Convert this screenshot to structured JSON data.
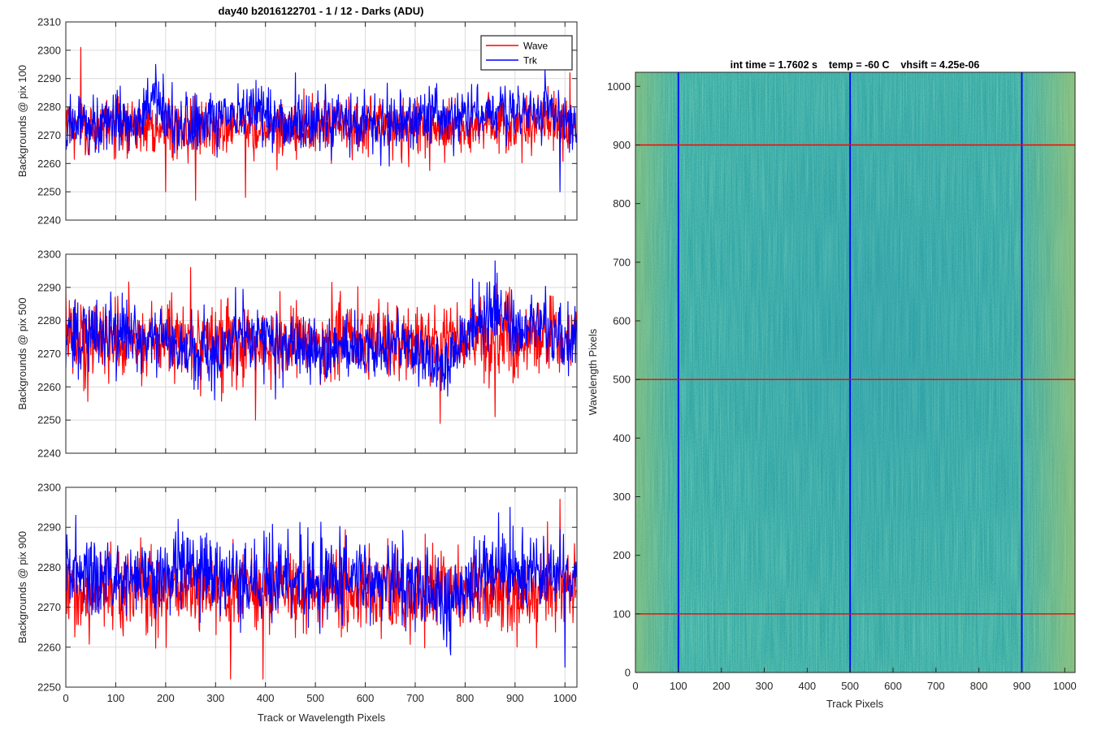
{
  "figure": {
    "title": "day40 b2016122701 - 1 / 12 - Darks (ADU)",
    "shared_xlabel": "Track or Wavelength Pixels"
  },
  "colors": {
    "wave": "#ff0000",
    "trk": "#0000ff",
    "grid": "#dcdcdc",
    "axis": "#262626",
    "image_base": "#2fa89a",
    "image_edge": "#a9c66a",
    "marker_rows": "#ff0000",
    "marker_cols": "#0000ff"
  },
  "chart_data": [
    {
      "type": "line",
      "ylabel": "Backgrounds @ pix 100",
      "xlim": [
        0,
        1024
      ],
      "ylim": [
        2240,
        2310
      ],
      "xticks": [
        0,
        100,
        200,
        300,
        400,
        500,
        600,
        700,
        800,
        900,
        1000
      ],
      "yticks": [
        2240,
        2250,
        2260,
        2270,
        2280,
        2290,
        2300,
        2310
      ],
      "grid": true,
      "legend": {
        "placement": "top-right",
        "entries": [
          "Wave",
          "Trk"
        ]
      },
      "series": [
        {
          "name": "Wave",
          "color": "#ff0000",
          "mean": 2273,
          "spread": 5,
          "features": [
            [
              30,
              2301
            ],
            [
              200,
              2250
            ],
            [
              260,
              2247
            ],
            [
              360,
              2248
            ],
            [
              1010,
              2292
            ]
          ]
        },
        {
          "name": "Trk",
          "color": "#0000ff",
          "mean": 2274,
          "spread": 5,
          "drift": [
            [
              0,
              2273
            ],
            [
              150,
              2276
            ],
            [
              180,
              2282
            ],
            [
              220,
              2273
            ],
            [
              400,
              2278
            ],
            [
              440,
              2274
            ],
            [
              600,
              2274
            ],
            [
              960,
              2279
            ],
            [
              1024,
              2272
            ]
          ],
          "features": [
            [
              180,
              2295
            ],
            [
              460,
              2292
            ],
            [
              520,
              2288
            ],
            [
              960,
              2293
            ],
            [
              990,
              2250
            ]
          ]
        }
      ]
    },
    {
      "type": "line",
      "ylabel": "Backgrounds @ pix 500",
      "xlim": [
        0,
        1024
      ],
      "ylim": [
        2240,
        2300
      ],
      "xticks": [
        0,
        100,
        200,
        300,
        400,
        500,
        600,
        700,
        800,
        900,
        1000
      ],
      "yticks": [
        2240,
        2250,
        2260,
        2270,
        2280,
        2290,
        2300
      ],
      "grid": true,
      "series": [
        {
          "name": "Wave",
          "color": "#ff0000",
          "mean": 2274,
          "spread": 6,
          "features": [
            [
              250,
              2296
            ],
            [
              380,
              2250
            ],
            [
              750,
              2249
            ],
            [
              860,
              2251
            ]
          ]
        },
        {
          "name": "Trk",
          "color": "#0000ff",
          "mean": 2274,
          "spread": 5,
          "drift": [
            [
              0,
              2276
            ],
            [
              100,
              2277
            ],
            [
              300,
              2268
            ],
            [
              350,
              2278
            ],
            [
              500,
              2272
            ],
            [
              700,
              2272
            ],
            [
              760,
              2266
            ],
            [
              850,
              2284
            ],
            [
              900,
              2278
            ],
            [
              1024,
              2274
            ]
          ],
          "features": [
            [
              340,
              2290
            ],
            [
              860,
              2298
            ]
          ]
        }
      ]
    },
    {
      "type": "line",
      "ylabel": "Backgrounds @ pix 900",
      "xlabel": "Track or Wavelength Pixels",
      "xlim": [
        0,
        1024
      ],
      "ylim": [
        2250,
        2300
      ],
      "xticks": [
        0,
        100,
        200,
        300,
        400,
        500,
        600,
        700,
        800,
        900,
        1000
      ],
      "yticks": [
        2250,
        2260,
        2270,
        2280,
        2290,
        2300
      ],
      "grid": true,
      "series": [
        {
          "name": "Wave",
          "color": "#ff0000",
          "mean": 2274,
          "spread": 5,
          "features": [
            [
              330,
              2252
            ],
            [
              395,
              2252
            ],
            [
              990,
              2297
            ]
          ]
        },
        {
          "name": "Trk",
          "color": "#0000ff",
          "mean": 2277,
          "spread": 5,
          "drift": [
            [
              0,
              2279
            ],
            [
              100,
              2276
            ],
            [
              200,
              2279
            ],
            [
              400,
              2277
            ],
            [
              700,
              2277
            ],
            [
              760,
              2271
            ],
            [
              850,
              2280
            ],
            [
              1024,
              2277
            ]
          ],
          "features": [
            [
              20,
              2293
            ],
            [
              225,
              2292
            ],
            [
              890,
              2295
            ],
            [
              1000,
              2255
            ]
          ]
        }
      ]
    },
    {
      "type": "heatmap",
      "title": "int time = 1.7602 s    temp = -60 C    vhsift = 4.25e-06",
      "xlabel": "Track Pixels",
      "ylabel": "Wavelength Pixels",
      "xlim": [
        0,
        1024
      ],
      "ylim": [
        0,
        1024
      ],
      "xticks": [
        0,
        100,
        200,
        300,
        400,
        500,
        600,
        700,
        800,
        900,
        1000
      ],
      "yticks": [
        0,
        100,
        200,
        300,
        400,
        500,
        600,
        700,
        800,
        900,
        1000
      ],
      "horizontal_markers": [
        100,
        500,
        900
      ],
      "vertical_markers": [
        100,
        500,
        900
      ]
    }
  ]
}
